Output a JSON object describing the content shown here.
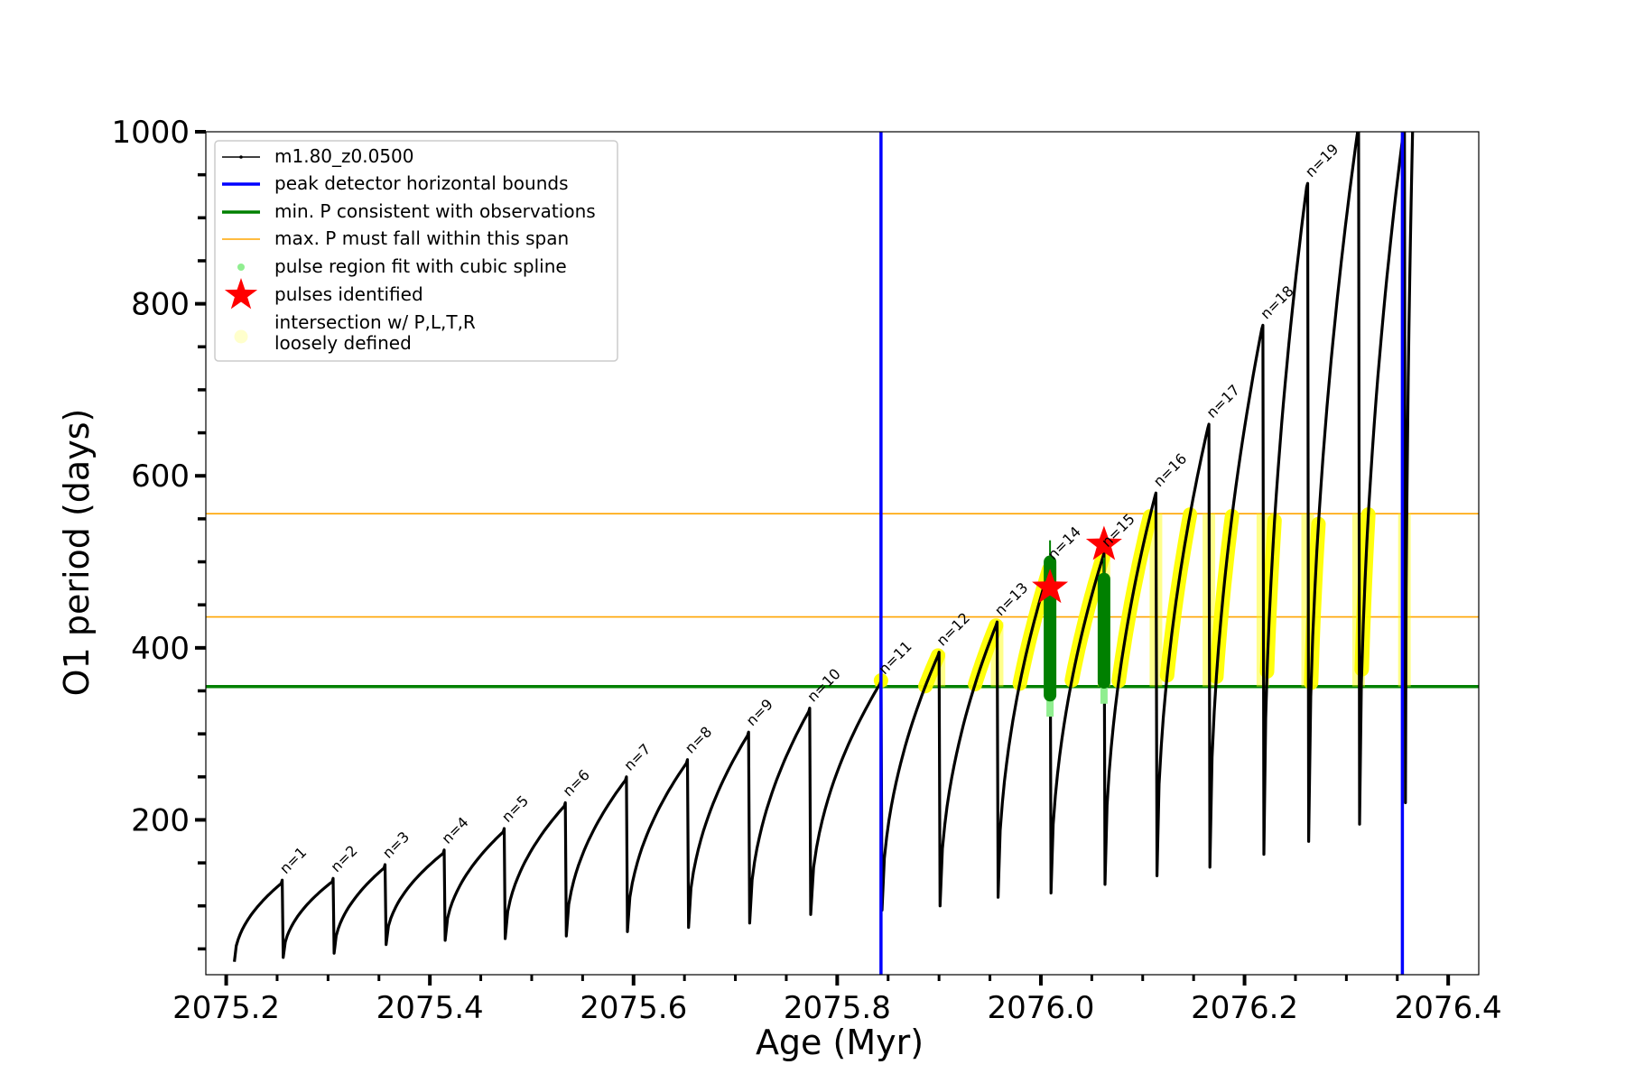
{
  "chart_data": {
    "type": "line",
    "xlabel": "Age (Myr)",
    "ylabel": "O1 period (days)",
    "xlim": [
      2075.18,
      2076.43
    ],
    "ylim": [
      20,
      1000
    ],
    "x_ticks": [
      2075.2,
      2075.4,
      2075.6,
      2075.8,
      2076.0,
      2076.2,
      2076.4
    ],
    "x_tick_labels": [
      "2075.2",
      "2075.4",
      "2075.6",
      "2075.8",
      "2076.0",
      "2076.2",
      "2076.4"
    ],
    "y_ticks": [
      200,
      400,
      600,
      800,
      1000
    ],
    "y_tick_labels": [
      "200",
      "400",
      "600",
      "800",
      "1000"
    ],
    "legend": {
      "position": "upper-left",
      "entries": [
        {
          "label": "m1.80_z0.0500",
          "style": "line-marker",
          "color": "#000000"
        },
        {
          "label": "peak detector horizontal bounds",
          "style": "line",
          "color": "#0000ff"
        },
        {
          "label": "min. P consistent with observations",
          "style": "line",
          "color": "#008000"
        },
        {
          "label": "max. P must fall within this span",
          "style": "thin-line",
          "color": "#ffa500"
        },
        {
          "label": "pulse region fit with cubic spline",
          "style": "dot",
          "color": "#90ee90"
        },
        {
          "label": "pulses identified",
          "style": "star",
          "color": "#ff0000"
        },
        {
          "label": "intersection w/ P,L,T,R\nloosely defined",
          "style": "circle",
          "color": "#ffffcc"
        }
      ]
    },
    "vertical_lines": {
      "color": "#0000ff",
      "x": [
        2075.843,
        2076.355
      ]
    },
    "horizontal_lines": [
      {
        "y": 355,
        "color": "#008000",
        "kind": "min"
      },
      {
        "y": 436,
        "color": "#ffa500",
        "kind": "max"
      },
      {
        "y": 556,
        "color": "#ffa500",
        "kind": "max"
      }
    ],
    "pulses": [
      {
        "n": 1,
        "x": 2075.255,
        "min": 40,
        "max": 130,
        "label": "n=1"
      },
      {
        "n": 2,
        "x": 2075.305,
        "min": 45,
        "max": 132,
        "label": "n=2"
      },
      {
        "n": 3,
        "x": 2075.356,
        "min": 55,
        "max": 148,
        "label": "n=3"
      },
      {
        "n": 4,
        "x": 2075.414,
        "min": 60,
        "max": 165,
        "label": "n=4"
      },
      {
        "n": 5,
        "x": 2075.473,
        "min": 62,
        "max": 190,
        "label": "n=5"
      },
      {
        "n": 6,
        "x": 2075.533,
        "min": 65,
        "max": 220,
        "label": "n=6"
      },
      {
        "n": 7,
        "x": 2075.593,
        "min": 70,
        "max": 250,
        "label": "n=7"
      },
      {
        "n": 8,
        "x": 2075.653,
        "min": 75,
        "max": 270,
        "label": "n=8"
      },
      {
        "n": 9,
        "x": 2075.713,
        "min": 80,
        "max": 302,
        "label": "n=9"
      },
      {
        "n": 10,
        "x": 2075.773,
        "min": 90,
        "max": 330,
        "label": "n=10"
      },
      {
        "n": 11,
        "x": 2075.843,
        "min": 95,
        "max": 362,
        "label": "n=11"
      },
      {
        "n": 12,
        "x": 2075.9,
        "min": 100,
        "max": 395,
        "label": "n=12"
      },
      {
        "n": 13,
        "x": 2075.957,
        "min": 110,
        "max": 430,
        "label": "n=13"
      },
      {
        "n": 14,
        "x": 2076.009,
        "min": 115,
        "max": 495,
        "label": "n=14"
      },
      {
        "n": 15,
        "x": 2076.062,
        "min": 125,
        "max": 510,
        "label": "n=15"
      },
      {
        "n": 16,
        "x": 2076.113,
        "min": 135,
        "max": 580,
        "label": "n=16"
      },
      {
        "n": 17,
        "x": 2076.165,
        "min": 145,
        "max": 660,
        "label": "n=17"
      },
      {
        "n": 18,
        "x": 2076.218,
        "min": 160,
        "max": 775,
        "label": "n=18"
      },
      {
        "n": 19,
        "x": 2076.262,
        "min": 175,
        "max": 940,
        "label": "n=19"
      },
      {
        "n": 20,
        "x": 2076.312,
        "min": 195,
        "max": 1000,
        "label": ""
      },
      {
        "n": 21,
        "x": 2076.357,
        "min": 220,
        "max": 1000,
        "label": ""
      }
    ],
    "series_start": {
      "x": 2075.208,
      "y": 35
    },
    "final_rise_end": {
      "x": 2076.365,
      "y": 1000
    },
    "pulses_identified": [
      {
        "x": 2076.009,
        "y": 470
      },
      {
        "x": 2076.062,
        "y": 520
      }
    ],
    "spline_fit_regions": [
      {
        "x": 2076.009,
        "y_min": 320,
        "y_max": 525
      },
      {
        "x": 2076.062,
        "y_min": 335,
        "y_max": 505
      }
    ],
    "intersection_regions": {
      "y_min": 355,
      "y_max": 556,
      "x_min": 2075.843,
      "x_max": 2076.355
    }
  }
}
